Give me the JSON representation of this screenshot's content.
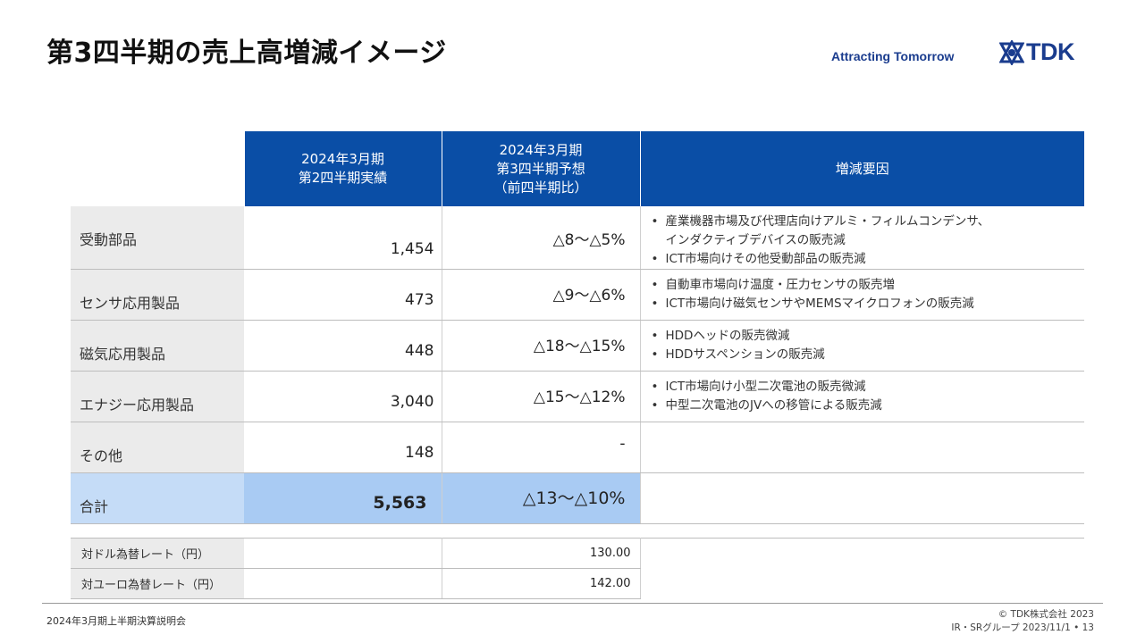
{
  "title": "第3四半期の売上高増減イメージ",
  "tagline": "Attracting Tomorrow",
  "logo_text": "TDK",
  "brand_color": "#1a3c8e",
  "header_color": "#0a4ea6",
  "table": {
    "headers": {
      "col1": [
        "2024年3月期",
        "第2四半期実績"
      ],
      "col2": [
        "2024年3月期",
        "第3四半期予想",
        "（前四半期比）"
      ],
      "col3": "増減要因"
    },
    "rows": [
      {
        "category": "受動部品",
        "q2": "1,454",
        "q3": "△8〜△5%",
        "reasons": [
          "産業機器市場及び代理店向けアルミ・フィルムコンデンサ、",
          "ICT市場向けその他受動部品の販売減"
        ],
        "reason_cont": "インダクティブデバイスの販売減"
      },
      {
        "category": "センサ応用製品",
        "q2": "473",
        "q3": "△9〜△6%",
        "reasons": [
          "自動車市場向け温度・圧力センサの販売増",
          "ICT市場向け磁気センサやMEMSマイクロフォンの販売減"
        ]
      },
      {
        "category": "磁気応用製品",
        "q2": "448",
        "q3": "△18〜△15%",
        "reasons": [
          "HDDヘッドの販売微減",
          "HDDサスペンションの販売減"
        ]
      },
      {
        "category": "エナジー応用製品",
        "q2": "3,040",
        "q3": "△15〜△12%",
        "reasons": [
          "ICT市場向け小型二次電池の販売微減",
          "中型二次電池のJVへの移管による販売減"
        ]
      },
      {
        "category": "その他",
        "q2": "148",
        "q3": "-"
      }
    ],
    "total": {
      "category": "合計",
      "q2": "5,563",
      "q3": "△13〜△10%"
    }
  },
  "fx": [
    {
      "label": "対ドル為替レート（円）",
      "value": "130.00"
    },
    {
      "label": "対ユーロ為替レート（円）",
      "value": "142.00"
    }
  ],
  "footer": {
    "left": "2024年3月期上半期決算説明会",
    "copyright": "© TDK株式会社 2023",
    "group_date_page": "IR・SRグループ  2023/11/1 • 13"
  }
}
